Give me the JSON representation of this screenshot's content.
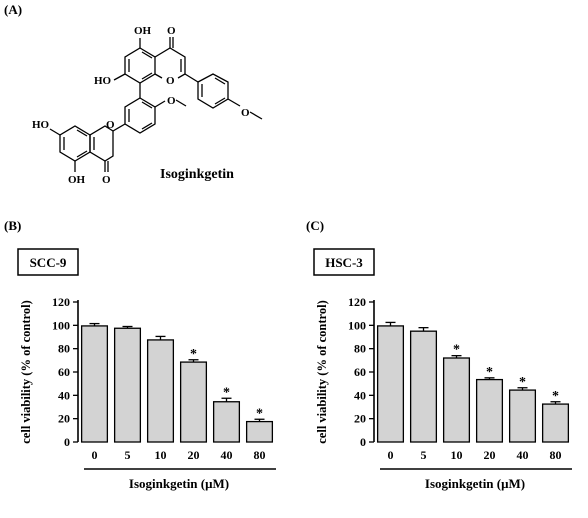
{
  "panels": {
    "a_label": "(A)",
    "b_label": "(B)",
    "c_label": "(C)"
  },
  "structure": {
    "compound_name": "Isoginkgetin",
    "atoms": {
      "oh_top": "OH",
      "oh_mid": "HO",
      "oh_left": "HO",
      "oh_bottom": "OH",
      "o_carbonyl_top": "O",
      "o_carbonyl_bottom": "O",
      "o_ring_top": "O",
      "o_ring_bottom": "O",
      "o_methoxy_mid": "O",
      "o_methoxy_right": "O"
    }
  },
  "chart_data": [
    {
      "type": "bar",
      "title": "SCC-9",
      "categories": [
        "0",
        "5",
        "10",
        "20",
        "40",
        "80"
      ],
      "values": [
        99.5,
        97.5,
        87.5,
        68.5,
        34.5,
        17.5
      ],
      "errors": [
        2,
        1.5,
        3,
        2,
        3,
        2
      ],
      "significant": [
        "",
        "",
        "",
        "*",
        "*",
        "*"
      ],
      "xlabel": "Isoginkgetin (μM)",
      "ylabel": "cell viability (% of control)",
      "ylim": [
        0,
        120
      ],
      "yticks": [
        "0",
        "20",
        "40",
        "60",
        "80",
        "100",
        "120"
      ],
      "bar_color": "#d3d3d3"
    },
    {
      "type": "bar",
      "title": "HSC-3",
      "categories": [
        "0",
        "5",
        "10",
        "20",
        "40",
        "80"
      ],
      "values": [
        99.5,
        95.0,
        72.0,
        53.5,
        44.5,
        32.5
      ],
      "errors": [
        3,
        3,
        2,
        1.5,
        2,
        2
      ],
      "significant": [
        "",
        "",
        "*",
        "*",
        "*",
        "*"
      ],
      "xlabel": "Isoginkgetin (μM)",
      "ylabel": "cell viability (% of control)",
      "ylim": [
        0,
        120
      ],
      "yticks": [
        "0",
        "20",
        "40",
        "60",
        "80",
        "100",
        "120"
      ],
      "bar_color": "#d3d3d3"
    }
  ]
}
